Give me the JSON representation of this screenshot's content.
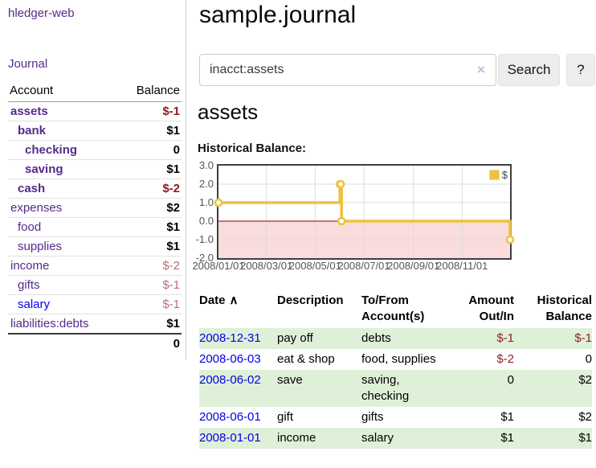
{
  "colors": {
    "visited_link_purple": "#552a8a",
    "unvisited_link_blue": "#0202ee",
    "negative_strong": "#8f1a1a",
    "negative_faded": "#b97070",
    "row_highlight_green": "#dff0d8",
    "series_gold": "#edc240",
    "negative_region_pink": "#fbdcdc",
    "zero_line_red": "#8b0000"
  },
  "sidebar": {
    "app_title": "hledger-web",
    "journal_label": "Journal",
    "accounts_table": {
      "headers": {
        "account": "Account",
        "balance": "Balance"
      },
      "rows": [
        {
          "label": "assets",
          "level": 1,
          "selected": true,
          "balance": "$-1",
          "negative": true
        },
        {
          "label": "bank",
          "level": 2,
          "selected": true,
          "balance": "$1",
          "negative": false
        },
        {
          "label": "checking",
          "level": 3,
          "selected": true,
          "balance": "0",
          "negative": false
        },
        {
          "label": "saving",
          "level": 3,
          "selected": true,
          "balance": "$1",
          "negative": false
        },
        {
          "label": "cash",
          "level": 2,
          "selected": true,
          "balance": "$-2",
          "negative": true
        },
        {
          "label": "expenses",
          "level": 1,
          "selected": false,
          "balance": "$2",
          "negative": false
        },
        {
          "label": "food",
          "level": 2,
          "selected": false,
          "balance": "$1",
          "negative": false
        },
        {
          "label": "supplies",
          "level": 2,
          "selected": false,
          "balance": "$1",
          "negative": false
        },
        {
          "label": "income",
          "level": 1,
          "selected": false,
          "balance": "$-2",
          "negative": true
        },
        {
          "label": "gifts",
          "level": 2,
          "selected": false,
          "balance": "$-1",
          "negative": true
        },
        {
          "label": "salary",
          "level": 2,
          "selected": false,
          "balance": "$-1",
          "negative": true,
          "unvisited": true
        },
        {
          "label": "liabilities:debts",
          "level": 1,
          "selected": false,
          "balance": "$1",
          "negative": false
        }
      ],
      "total": "0"
    }
  },
  "main": {
    "page_title": "sample.journal",
    "search": {
      "value": "inacct:assets",
      "clear_icon": "×",
      "button_label": "Search",
      "help_label": "?"
    },
    "account_heading": "assets",
    "chart_heading": "Historical Balance:"
  },
  "chart_data": {
    "type": "line",
    "title": "Historical Balance",
    "step": true,
    "ylim": [
      -2,
      3
    ],
    "xlim": [
      "2008-01-01",
      "2008-12-31"
    ],
    "grid": true,
    "legend_position": "top-right",
    "series": [
      {
        "name": "$",
        "color": "#edc240",
        "points": [
          {
            "date": "2008-01-01",
            "value": 1
          },
          {
            "date": "2008-06-01",
            "value": 2
          },
          {
            "date": "2008-06-02",
            "value": 2
          },
          {
            "date": "2008-06-03",
            "value": 0
          },
          {
            "date": "2008-12-31",
            "value": -1
          }
        ]
      }
    ],
    "y_ticks": [
      3.0,
      2.0,
      1.0,
      0.0,
      -1.0,
      -2.0
    ],
    "x_ticks": [
      {
        "label": "2008/01/01",
        "date": "2008-01-01"
      },
      {
        "label": "2008/03/01",
        "date": "2008-03-01"
      },
      {
        "label": "2008/05/01",
        "date": "2008-05-01"
      },
      {
        "label": "2008/07/01",
        "date": "2008-07-01"
      },
      {
        "label": "2008/09/01",
        "date": "2008-09-01"
      },
      {
        "label": "2008/11/01",
        "date": "2008-11-01"
      }
    ]
  },
  "register": {
    "headers": {
      "date": "Date",
      "sort_indicator": "∧",
      "description": "Description",
      "accounts": "To/From Account(s)",
      "amount": "Amount Out/In",
      "balance": "Historical Balance"
    },
    "rows": [
      {
        "date": "2008-12-31",
        "description": "pay off",
        "accounts": "debts",
        "amount": "$-1",
        "amount_negative": true,
        "balance": "$-1",
        "balance_negative": true
      },
      {
        "date": "2008-06-03",
        "description": "eat & shop",
        "accounts": "food, supplies",
        "amount": "$-2",
        "amount_negative": true,
        "balance": "0",
        "balance_negative": false
      },
      {
        "date": "2008-06-02",
        "description": "save",
        "accounts": "saving, checking",
        "amount": "0",
        "amount_negative": false,
        "balance": "$2",
        "balance_negative": false
      },
      {
        "date": "2008-06-01",
        "description": "gift",
        "accounts": "gifts",
        "amount": "$1",
        "amount_negative": false,
        "balance": "$2",
        "balance_negative": false
      },
      {
        "date": "2008-01-01",
        "description": "income",
        "accounts": "salary",
        "amount": "$1",
        "amount_negative": false,
        "balance": "$1",
        "balance_negative": false
      }
    ]
  }
}
